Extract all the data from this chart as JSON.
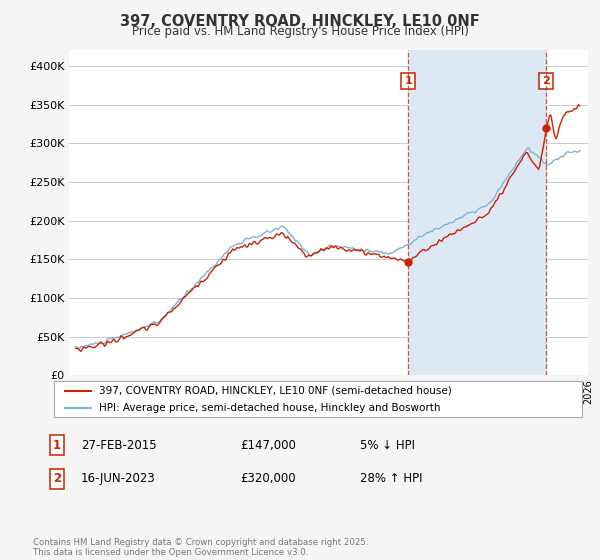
{
  "title": "397, COVENTRY ROAD, HINCKLEY, LE10 0NF",
  "subtitle": "Price paid vs. HM Land Registry's House Price Index (HPI)",
  "title_color": "#333333",
  "bg_color": "#f5f5f5",
  "plot_bg_color": "#ffffff",
  "grid_color": "#cccccc",
  "hpi_line_color": "#7fb3d3",
  "price_line_color": "#cc2200",
  "shade_color": "#dce9f5",
  "marker1_date_label": "27-FEB-2015",
  "marker1_price": 147000,
  "marker1_pct": "5% ↓ HPI",
  "marker2_date_label": "16-JUN-2023",
  "marker2_price": 320000,
  "marker2_pct": "28% ↑ HPI",
  "marker1_x": 2015.12,
  "marker2_x": 2023.46,
  "ylim": [
    0,
    420000
  ],
  "xlim": [
    1994.6,
    2026.0
  ],
  "yticks": [
    0,
    50000,
    100000,
    150000,
    200000,
    250000,
    300000,
    350000,
    400000
  ],
  "ytick_labels": [
    "£0",
    "£50K",
    "£100K",
    "£150K",
    "£200K",
    "£250K",
    "£300K",
    "£350K",
    "£400K"
  ],
  "legend_label1": "397, COVENTRY ROAD, HINCKLEY, LE10 0NF (semi-detached house)",
  "legend_label2": "HPI: Average price, semi-detached house, Hinckley and Bosworth",
  "footer": "Contains HM Land Registry data © Crown copyright and database right 2025.\nThis data is licensed under the Open Government Licence v3.0."
}
